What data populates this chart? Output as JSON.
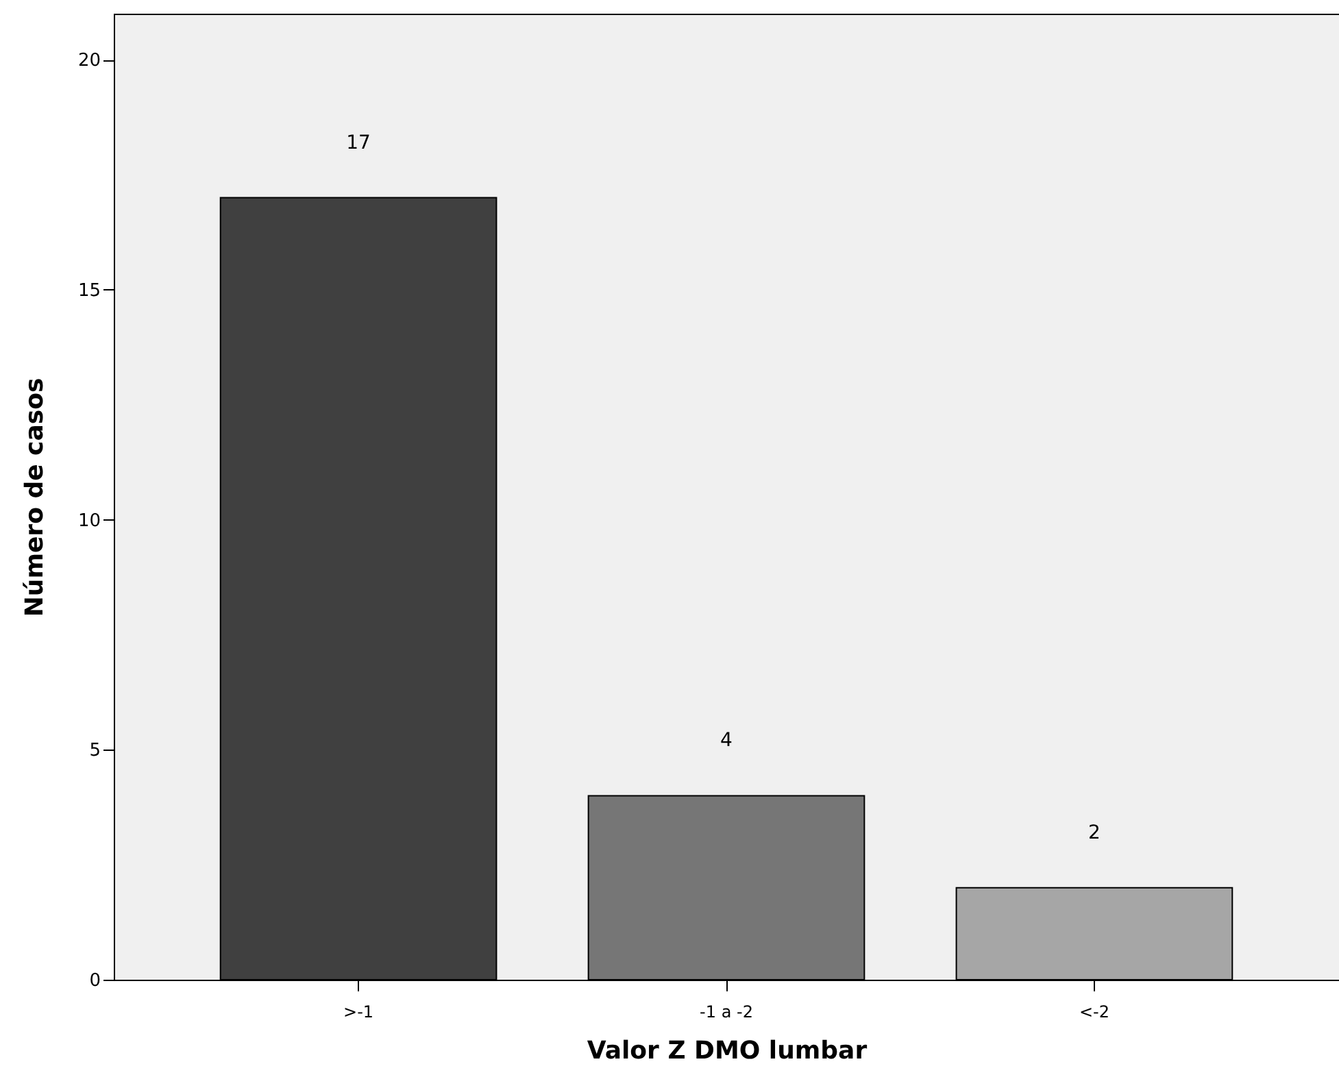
{
  "chart_data": {
    "type": "bar",
    "xlabel": "Valor Z DMO lumbar",
    "ylabel": "Número de casos",
    "categories": [
      ">-1",
      "-1 a -2",
      "<-2"
    ],
    "values": [
      17,
      4,
      2
    ],
    "colors": [
      "#404040",
      "#767676",
      "#a6a6a6"
    ],
    "ylim": [
      0,
      21
    ],
    "yticks": [
      0,
      5,
      10,
      15,
      20
    ],
    "grid": false,
    "data_labels": true
  }
}
